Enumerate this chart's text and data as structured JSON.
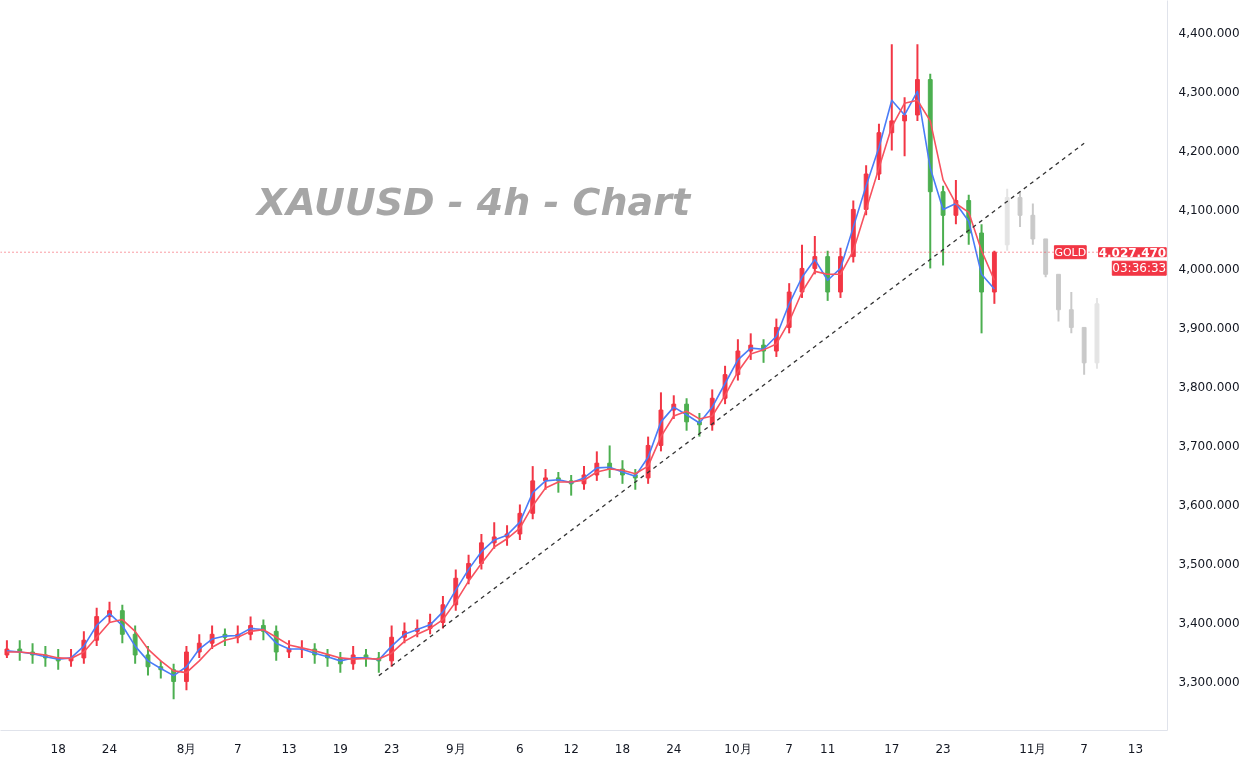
{
  "chart_data": {
    "type": "candlestick",
    "title": "XAUUSD - 4h - Chart",
    "categories": [
      null,
      null,
      null,
      null,
      "18",
      null,
      null,
      null,
      "24",
      null,
      null,
      null,
      null,
      null,
      "8月",
      null,
      null,
      null,
      "7",
      null,
      null,
      null,
      "13",
      null,
      null,
      null,
      "19",
      null,
      null,
      null,
      "23",
      null,
      null,
      null,
      null,
      "9月",
      null,
      null,
      null,
      null,
      "6",
      null,
      null,
      null,
      "12",
      null,
      null,
      null,
      "18",
      null,
      null,
      null,
      "24",
      null,
      null,
      null,
      null,
      "10月",
      null,
      null,
      null,
      "7",
      null,
      null,
      "11",
      null,
      null,
      null,
      null,
      "17",
      null,
      null,
      null,
      "23",
      null,
      null,
      null,
      null,
      null,
      null,
      "11月",
      null,
      null,
      null,
      "7",
      null,
      null,
      null,
      "13"
    ],
    "series": [
      {
        "colors": [
          "#f23645",
          "#4caf50",
          "#4caf50",
          "#4caf50",
          "#4caf50",
          "#f23645",
          "#f23645",
          "#f23645",
          "#f23645",
          "#4caf50",
          "#4caf50",
          "#4caf50",
          "#4caf50",
          "#4caf50",
          "#f23645",
          "#f23645",
          "#f23645",
          "#4caf50",
          "#f23645",
          "#f23645",
          "#4caf50",
          "#4caf50",
          "#f23645",
          "#f23645",
          "#4caf50",
          "#4caf50",
          "#4caf50",
          "#f23645",
          "#4caf50",
          "#4caf50",
          "#f23645",
          "#f23645",
          "#f23645",
          "#f23645",
          "#f23645",
          "#f23645",
          "#f23645",
          "#f23645",
          "#f23645",
          "#f23645",
          "#f23645",
          "#f23645",
          "#f23645",
          "#4caf50",
          "#4caf50",
          "#f23645",
          "#f23645",
          "#4caf50",
          "#4caf50",
          "#4caf50",
          "#f23645",
          "#f23645",
          "#f23645",
          "#4caf50",
          "#4caf50",
          "#f23645",
          "#f23645",
          "#f23645",
          "#f23645",
          "#4caf50",
          "#f23645",
          "#f23645",
          "#f23645",
          "#f23645",
          "#4caf50",
          "#f23645",
          "#f23645",
          "#f23645",
          "#f23645",
          "#f23645",
          "#f23645",
          "#f23645",
          "#4caf50",
          "#4caf50",
          "#f23645",
          "#4caf50",
          "#4caf50",
          "#f23645",
          null,
          null,
          null,
          null,
          null,
          null,
          null,
          null,
          null,
          null,
          null
        ],
        "ohlc": [
          [
            3345,
            3370,
            3340,
            3355
          ],
          [
            3355,
            3370,
            3335,
            3350
          ],
          [
            3350,
            3365,
            3330,
            3345
          ],
          [
            3345,
            3360,
            3325,
            3340
          ],
          [
            3340,
            3355,
            3320,
            3335
          ],
          [
            3335,
            3355,
            3325,
            3340
          ],
          [
            3340,
            3385,
            3330,
            3370
          ],
          [
            3370,
            3425,
            3360,
            3410
          ],
          [
            3410,
            3435,
            3400,
            3420
          ],
          [
            3420,
            3430,
            3365,
            3380
          ],
          [
            3380,
            3395,
            3330,
            3345
          ],
          [
            3345,
            3360,
            3310,
            3325
          ],
          [
            3325,
            3335,
            3305,
            3320
          ],
          [
            3320,
            3330,
            3270,
            3300
          ],
          [
            3300,
            3360,
            3285,
            3350
          ],
          [
            3350,
            3380,
            3340,
            3365
          ],
          [
            3365,
            3395,
            3355,
            3380
          ],
          [
            3380,
            3390,
            3360,
            3375
          ],
          [
            3375,
            3395,
            3365,
            3380
          ],
          [
            3380,
            3410,
            3370,
            3395
          ],
          [
            3395,
            3405,
            3370,
            3385
          ],
          [
            3385,
            3395,
            3335,
            3350
          ],
          [
            3350,
            3370,
            3340,
            3355
          ],
          [
            3355,
            3370,
            3340,
            3355
          ],
          [
            3355,
            3365,
            3330,
            3345
          ],
          [
            3345,
            3355,
            3325,
            3340
          ],
          [
            3340,
            3350,
            3315,
            3330
          ],
          [
            3330,
            3360,
            3320,
            3345
          ],
          [
            3345,
            3355,
            3325,
            3340
          ],
          [
            3340,
            3350,
            3315,
            3335
          ],
          [
            3335,
            3395,
            3325,
            3375
          ],
          [
            3375,
            3400,
            3365,
            3385
          ],
          [
            3385,
            3405,
            3375,
            3390
          ],
          [
            3390,
            3415,
            3380,
            3400
          ],
          [
            3400,
            3445,
            3390,
            3430
          ],
          [
            3430,
            3490,
            3420,
            3475
          ],
          [
            3475,
            3515,
            3465,
            3500
          ],
          [
            3500,
            3550,
            3490,
            3535
          ],
          [
            3535,
            3570,
            3525,
            3545
          ],
          [
            3545,
            3565,
            3530,
            3550
          ],
          [
            3550,
            3600,
            3540,
            3585
          ],
          [
            3585,
            3665,
            3575,
            3640
          ],
          [
            3640,
            3660,
            3625,
            3645
          ],
          [
            3645,
            3655,
            3620,
            3640
          ],
          [
            3640,
            3650,
            3615,
            3635
          ],
          [
            3635,
            3665,
            3625,
            3650
          ],
          [
            3650,
            3690,
            3640,
            3670
          ],
          [
            3670,
            3700,
            3645,
            3660
          ],
          [
            3660,
            3675,
            3635,
            3650
          ],
          [
            3650,
            3660,
            3625,
            3645
          ],
          [
            3645,
            3715,
            3635,
            3700
          ],
          [
            3700,
            3790,
            3690,
            3760
          ],
          [
            3760,
            3785,
            3745,
            3770
          ],
          [
            3770,
            3780,
            3725,
            3740
          ],
          [
            3740,
            3755,
            3715,
            3735
          ],
          [
            3735,
            3795,
            3725,
            3780
          ],
          [
            3780,
            3835,
            3770,
            3820
          ],
          [
            3820,
            3880,
            3810,
            3860
          ],
          [
            3860,
            3890,
            3845,
            3870
          ],
          [
            3870,
            3880,
            3840,
            3860
          ],
          [
            3860,
            3915,
            3850,
            3900
          ],
          [
            3900,
            3975,
            3890,
            3960
          ],
          [
            3960,
            4040,
            3950,
            4000
          ],
          [
            4000,
            4055,
            3990,
            4020
          ],
          [
            4020,
            4030,
            3945,
            3960
          ],
          [
            3960,
            4035,
            3950,
            4020
          ],
          [
            4020,
            4115,
            4010,
            4100
          ],
          [
            4100,
            4175,
            4090,
            4160
          ],
          [
            4160,
            4245,
            4150,
            4230
          ],
          [
            4230,
            4380,
            4200,
            4250
          ],
          [
            4250,
            4290,
            4190,
            4260
          ],
          [
            4260,
            4380,
            4250,
            4320
          ],
          [
            4320,
            4330,
            4000,
            4130
          ],
          [
            4130,
            4140,
            4005,
            4090
          ],
          [
            4090,
            4150,
            4075,
            4115
          ],
          [
            4115,
            4125,
            4040,
            4060
          ],
          [
            4060,
            4075,
            3890,
            3960
          ],
          [
            3960,
            4030,
            3940,
            4027.47
          ],
          null,
          null,
          null,
          null,
          null,
          null,
          null,
          null,
          null,
          null,
          null
        ]
      },
      {
        "type": "candlestick",
        "colors": [
          null,
          null,
          null,
          null,
          null,
          null,
          null,
          null,
          null,
          null,
          null,
          null,
          null,
          null,
          null,
          null,
          null,
          null,
          null,
          null,
          null,
          null,
          null,
          null,
          null,
          null,
          null,
          null,
          null,
          null,
          null,
          null,
          null,
          null,
          null,
          null,
          null,
          null,
          null,
          null,
          null,
          null,
          null,
          null,
          null,
          null,
          null,
          null,
          null,
          null,
          null,
          null,
          null,
          null,
          null,
          null,
          null,
          null,
          null,
          null,
          null,
          null,
          null,
          null,
          null,
          null,
          null,
          null,
          null,
          null,
          null,
          null,
          null,
          null,
          null,
          null,
          null,
          null,
          "#e4e4e4",
          "#c9c9c9",
          "#c9c9c9",
          "#c9c9c9",
          "#c9c9c9",
          "#c9c9c9",
          "#c9c9c9",
          "#e4e4e4",
          null,
          null,
          null
        ],
        "ohlc": [
          null,
          null,
          null,
          null,
          null,
          null,
          null,
          null,
          null,
          null,
          null,
          null,
          null,
          null,
          null,
          null,
          null,
          null,
          null,
          null,
          null,
          null,
          null,
          null,
          null,
          null,
          null,
          null,
          null,
          null,
          null,
          null,
          null,
          null,
          null,
          null,
          null,
          null,
          null,
          null,
          null,
          null,
          null,
          null,
          null,
          null,
          null,
          null,
          null,
          null,
          null,
          null,
          null,
          null,
          null,
          null,
          null,
          null,
          null,
          null,
          null,
          null,
          null,
          null,
          null,
          null,
          null,
          null,
          null,
          null,
          null,
          null,
          null,
          null,
          null,
          null,
          null,
          null,
          [
            4040,
            4135,
            4030,
            4120
          ],
          [
            4120,
            4130,
            4070,
            4090
          ],
          [
            4090,
            4110,
            4040,
            4050
          ],
          [
            4050,
            4050,
            3985,
            3990
          ],
          [
            3990,
            3990,
            3910,
            3930
          ],
          [
            3930,
            3960,
            3890,
            3900
          ],
          [
            3900,
            3900,
            3820,
            3840
          ],
          [
            3840,
            3950,
            3830,
            3940
          ],
          null,
          null,
          null
        ]
      },
      {
        "type": "line",
        "color": "#4a7cf7",
        "values": [
          3352,
          3350,
          3347,
          3342,
          3338,
          3340,
          3360,
          3395,
          3415,
          3395,
          3360,
          3335,
          3322,
          3310,
          3325,
          3355,
          3372,
          3377,
          3378,
          3390,
          3388,
          3365,
          3355,
          3355,
          3348,
          3342,
          3335,
          3340,
          3340,
          3337,
          3360,
          3380,
          3388,
          3396,
          3418,
          3455,
          3490,
          3520,
          3540,
          3548,
          3570,
          3620,
          3640,
          3642,
          3637,
          3645,
          3662,
          3663,
          3655,
          3648,
          3680,
          3740,
          3765,
          3752,
          3738,
          3765,
          3805,
          3845,
          3865,
          3863,
          3885,
          3940,
          3985,
          4015,
          3980,
          4000,
          4070,
          4140,
          4205,
          4285,
          4260,
          4300,
          4170,
          4100,
          4110,
          4080,
          3990,
          3965,
          null,
          null,
          null,
          null,
          null,
          null,
          null,
          null,
          null,
          null,
          null
        ]
      },
      {
        "type": "line",
        "color": "#f7525f",
        "values": [
          3350,
          3350,
          3348,
          3345,
          3340,
          3339,
          3350,
          3375,
          3400,
          3405,
          3385,
          3355,
          3335,
          3318,
          3315,
          3335,
          3358,
          3370,
          3375,
          3385,
          3388,
          3375,
          3362,
          3357,
          3352,
          3346,
          3340,
          3338,
          3339,
          3338,
          3348,
          3368,
          3380,
          3390,
          3405,
          3435,
          3470,
          3500,
          3528,
          3542,
          3560,
          3598,
          3628,
          3638,
          3638,
          3641,
          3655,
          3660,
          3658,
          3652,
          3665,
          3715,
          3750,
          3758,
          3745,
          3750,
          3785,
          3825,
          3855,
          3862,
          3872,
          3910,
          3960,
          3995,
          3990,
          3990,
          4030,
          4100,
          4170,
          4240,
          4280,
          4285,
          4250,
          4150,
          4110,
          4095,
          4030,
          3980,
          null,
          null,
          null,
          null,
          null,
          null,
          null,
          null,
          null,
          null,
          null
        ]
      },
      {
        "type": "line",
        "color": "#333333",
        "line_style": "dashed",
        "values": [
          null,
          null,
          null,
          null,
          null,
          null,
          null,
          null,
          null,
          null,
          null,
          null,
          null,
          null,
          null,
          null,
          null,
          null,
          null,
          null,
          null,
          null,
          null,
          null,
          null,
          null,
          null,
          null,
          null,
          3310,
          null,
          null,
          null,
          null,
          null,
          null,
          null,
          null,
          null,
          null,
          null,
          null,
          null,
          null,
          null,
          null,
          null,
          null,
          null,
          null,
          null,
          null,
          null,
          null,
          null,
          null,
          null,
          null,
          null,
          null,
          null,
          null,
          null,
          null,
          null,
          null,
          null,
          null,
          null,
          null,
          null,
          null,
          null,
          null,
          null,
          null,
          null,
          null,
          null,
          null,
          null,
          null,
          null,
          null,
          4212,
          null,
          null,
          null,
          null
        ]
      }
    ],
    "ylim": [
      3217,
      4454
    ],
    "yticks": [
      {
        "value": 3300,
        "label": "3,300.000"
      },
      {
        "value": 3400,
        "label": "3,400.000"
      },
      {
        "value": 3500,
        "label": "3,500.000"
      },
      {
        "value": 3600,
        "label": "3,600.000"
      },
      {
        "value": 3700,
        "label": "3,700.000"
      },
      {
        "value": 3800,
        "label": "3,800.000"
      },
      {
        "value": 3900,
        "label": "3,900.000"
      },
      {
        "value": 4000,
        "label": "4,000.000"
      },
      {
        "value": 4100,
        "label": "4,100.000"
      },
      {
        "value": 4200,
        "label": "4,200.000"
      },
      {
        "value": 4300,
        "label": "4,300.000"
      },
      {
        "value": 4400,
        "label": "4,400.000"
      }
    ],
    "ref_lines": [
      {
        "axis": "y",
        "value": 4027.47,
        "label": "GOLD",
        "color": "#f23645",
        "line_style": "dotted"
      }
    ],
    "annotations": [
      "4,027.470",
      "03:36:33"
    ],
    "grid": false,
    "marker": "none"
  }
}
